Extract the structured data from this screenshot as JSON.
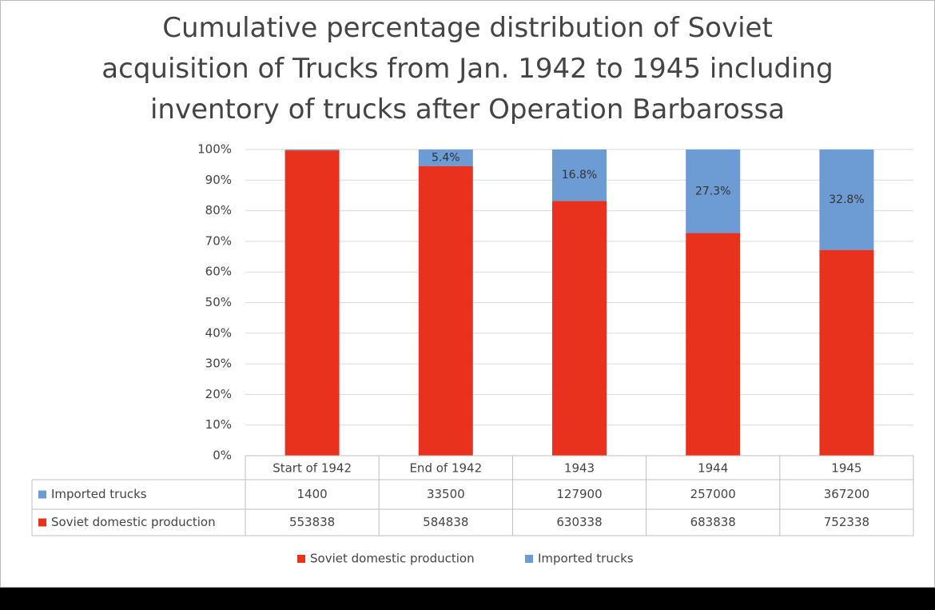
{
  "chart_data": {
    "type": "bar",
    "stacked": true,
    "title": "Cumulative percentage distribution of Soviet acquisition of Trucks from Jan. 1942 to 1945 including inventory of trucks after Operation Barbarossa",
    "categories": [
      "Start of 1942",
      "End of 1942",
      "1943",
      "1944",
      "1945"
    ],
    "series": [
      {
        "name": "Soviet domestic production",
        "color": "#e8321e",
        "values": [
          99.7,
          94.6,
          83.2,
          72.7,
          67.2
        ]
      },
      {
        "name": "Imported trucks",
        "color": "#6d9bd3",
        "values": [
          0.3,
          5.4,
          16.8,
          27.3,
          32.8
        ],
        "value_labels": [
          null,
          "5.4%",
          "16.8%",
          "27.3%",
          "32.8%"
        ]
      }
    ],
    "ylim": [
      0,
      100
    ],
    "yticks": [
      {
        "value": 0,
        "label": "0%"
      },
      {
        "value": 10,
        "label": "10%"
      },
      {
        "value": 20,
        "label": "20%"
      },
      {
        "value": 30,
        "label": "30%"
      },
      {
        "value": 40,
        "label": "40%"
      },
      {
        "value": 50,
        "label": "50%"
      },
      {
        "value": 60,
        "label": "60%"
      },
      {
        "value": 70,
        "label": "70%"
      },
      {
        "value": 80,
        "label": "80%"
      },
      {
        "value": 90,
        "label": "90%"
      },
      {
        "value": 100,
        "label": "100%"
      }
    ],
    "grid": true,
    "legend": "bottom",
    "data_table": {
      "rows": [
        {
          "name": "Imported trucks",
          "color": "#6d9bd3",
          "values": [
            1400,
            33500,
            127900,
            257000,
            367200
          ]
        },
        {
          "name": "Soviet domestic production",
          "color": "#e8321e",
          "values": [
            553838,
            584838,
            630338,
            683838,
            752338
          ]
        }
      ]
    }
  }
}
